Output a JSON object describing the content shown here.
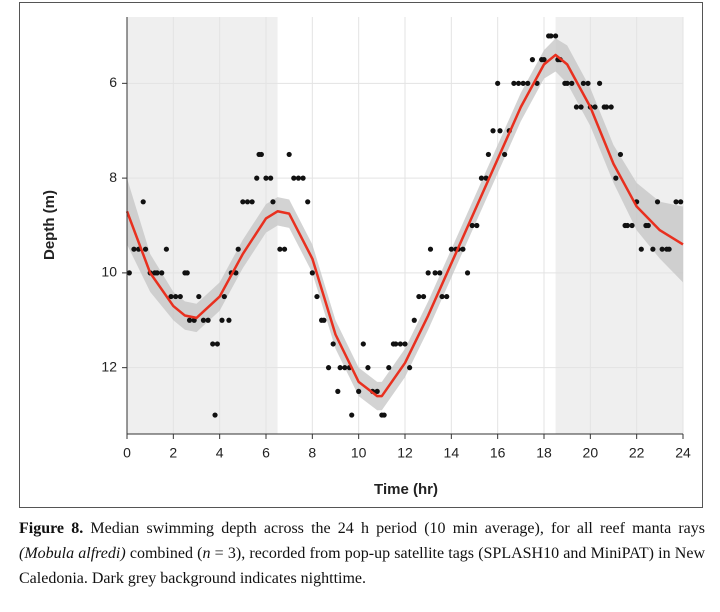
{
  "chart_data": {
    "type": "scatter",
    "xlabel": "Time (hr)",
    "ylabel": "Depth (m)",
    "xlim": [
      0,
      24
    ],
    "ylim": [
      4.6,
      13.4
    ],
    "y_inverted": true,
    "xticks": [
      0,
      2,
      4,
      6,
      8,
      10,
      12,
      14,
      16,
      18,
      20,
      22,
      24
    ],
    "yticks": [
      6,
      8,
      10,
      12
    ],
    "grid": true,
    "night": [
      [
        0,
        6.5
      ],
      [
        18.5,
        24
      ]
    ],
    "night_color": "#efefef",
    "point_color": "#111111",
    "line_color": "#e8301f",
    "band_color": "#c4c4c4",
    "points": {
      "x": [
        0.1,
        0.3,
        0.5,
        0.7,
        0.8,
        1.0,
        1.2,
        1.3,
        1.5,
        1.7,
        1.9,
        2.1,
        2.3,
        2.5,
        2.6,
        2.7,
        2.9,
        3.1,
        3.3,
        3.5,
        3.7,
        3.8,
        3.9,
        4.1,
        4.2,
        4.4,
        4.5,
        4.7,
        4.8,
        5.0,
        5.2,
        5.4,
        5.6,
        5.7,
        5.8,
        6.0,
        6.2,
        6.3,
        6.6,
        6.8,
        7.0,
        7.2,
        7.4,
        7.6,
        7.8,
        8.0,
        8.2,
        8.4,
        8.5,
        8.7,
        8.9,
        9.1,
        9.2,
        9.4,
        9.6,
        9.7,
        10.0,
        10.2,
        10.4,
        10.6,
        10.8,
        11.0,
        11.1,
        11.3,
        11.5,
        11.6,
        11.8,
        12.0,
        12.2,
        12.4,
        12.6,
        12.8,
        13.0,
        13.1,
        13.3,
        13.5,
        13.6,
        13.8,
        14.0,
        14.2,
        14.3,
        14.5,
        14.7,
        14.9,
        15.1,
        15.3,
        15.5,
        15.6,
        15.8,
        16.0,
        16.1,
        16.3,
        16.5,
        16.7,
        16.9,
        17.1,
        17.3,
        17.5,
        17.7,
        17.9,
        18.0,
        18.2,
        18.3,
        18.5,
        18.6,
        18.7,
        18.9,
        19.0,
        19.2,
        19.4,
        19.6,
        19.7,
        19.9,
        20.0,
        20.2,
        20.4,
        20.6,
        20.7,
        20.9,
        21.1,
        21.3,
        21.5,
        21.6,
        21.8,
        22.0,
        22.2,
        22.4,
        22.5,
        22.7,
        22.9,
        23.1,
        23.3,
        23.4,
        23.7,
        23.9
      ],
      "y": [
        10,
        9.5,
        9.5,
        8.5,
        9.5,
        10,
        10,
        10,
        10,
        9.5,
        10.5,
        10.5,
        10.5,
        10,
        10,
        11,
        11,
        10.5,
        11,
        11,
        11.5,
        13,
        11.5,
        11,
        10.5,
        11,
        10,
        10,
        9.5,
        8.5,
        8.5,
        8.5,
        8,
        7.5,
        7.5,
        8,
        8,
        8.5,
        9.5,
        9.5,
        7.5,
        8,
        8,
        8,
        8.5,
        10,
        10.5,
        11,
        11,
        12,
        11.5,
        12.5,
        12,
        12,
        12,
        13,
        12.5,
        11.5,
        12,
        12.5,
        12.5,
        13,
        13,
        12,
        11.5,
        11.5,
        11.5,
        11.5,
        12,
        11,
        10.5,
        10.5,
        10,
        9.5,
        10,
        10,
        10.5,
        10.5,
        9.5,
        9.5,
        9.5,
        9.5,
        10,
        9,
        9,
        8,
        8,
        7.5,
        7,
        6,
        7,
        7.5,
        7,
        6,
        6,
        6,
        6,
        5.5,
        6,
        5.5,
        5.5,
        5,
        5,
        5,
        5.5,
        5.5,
        6,
        6,
        6,
        6.5,
        6.5,
        6,
        6,
        6.5,
        6.5,
        6,
        6.5,
        6.5,
        6.5,
        8,
        7.5,
        9,
        9,
        9,
        8.5,
        9.5,
        9,
        9,
        9.5,
        8.5,
        9.5,
        9.5,
        9.5,
        8.5,
        8.5
      ]
    },
    "smooth": {
      "x": [
        0,
        1,
        2,
        2.5,
        3,
        4,
        5,
        6,
        6.5,
        7,
        8,
        9,
        10,
        10.8,
        11,
        12,
        13,
        14,
        15,
        16,
        17,
        18,
        18.5,
        19,
        20,
        21,
        22,
        23,
        24
      ],
      "y": [
        8.7,
        10.0,
        10.7,
        10.9,
        10.95,
        10.5,
        9.6,
        8.85,
        8.7,
        8.75,
        9.7,
        11.3,
        12.3,
        12.6,
        12.6,
        11.9,
        10.9,
        9.8,
        8.7,
        7.6,
        6.5,
        5.6,
        5.4,
        5.6,
        6.5,
        7.7,
        8.6,
        9.1,
        9.4
      ],
      "lower": [
        8.0,
        9.6,
        10.4,
        10.6,
        10.65,
        10.2,
        9.3,
        8.55,
        8.4,
        8.45,
        9.4,
        11.0,
        12.0,
        12.3,
        12.3,
        11.6,
        10.6,
        9.5,
        8.4,
        7.3,
        6.2,
        5.3,
        5.05,
        5.2,
        6.1,
        7.3,
        8.1,
        8.5,
        8.6
      ],
      "upper": [
        9.4,
        10.4,
        11.0,
        11.2,
        11.25,
        10.8,
        9.9,
        9.15,
        9.0,
        9.05,
        10.0,
        11.6,
        12.6,
        12.9,
        12.9,
        12.2,
        11.2,
        10.1,
        9.0,
        7.9,
        6.8,
        5.9,
        5.75,
        6.0,
        6.9,
        8.1,
        9.1,
        9.7,
        10.2
      ]
    }
  },
  "caption": {
    "label": "Figure 8.",
    "text1": " Median swimming depth across the 24 h period (10 min average), for all reef manta rays ",
    "italic1": "(Mobula alfredi)",
    "text2": " combined (",
    "italic2": "n",
    "text3": " = 3), recorded from pop-up satellite tags (SPLASH10 and MiniPAT) in New Caledonia. Dark grey background indicates nighttime."
  }
}
